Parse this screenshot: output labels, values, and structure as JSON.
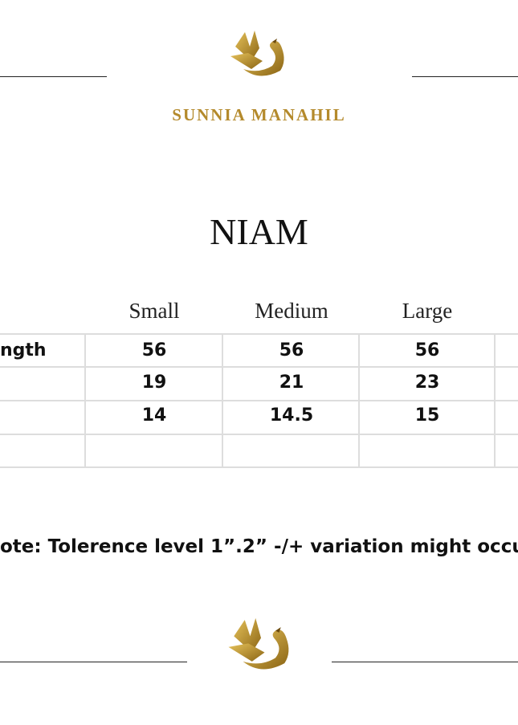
{
  "header": {
    "brand": "SUNNIA MANAHIL"
  },
  "title": "NIAM",
  "table": {
    "columns": [
      "Small",
      "Medium",
      "Large"
    ],
    "rows": [
      {
        "label": "ngth",
        "values": [
          56,
          56,
          56
        ]
      },
      {
        "values": [
          19,
          21,
          23
        ]
      },
      {
        "values": [
          14,
          14.5,
          15
        ]
      }
    ]
  },
  "note": "ote: Tolerence level 1”.2” -/+ variation might occu"
}
